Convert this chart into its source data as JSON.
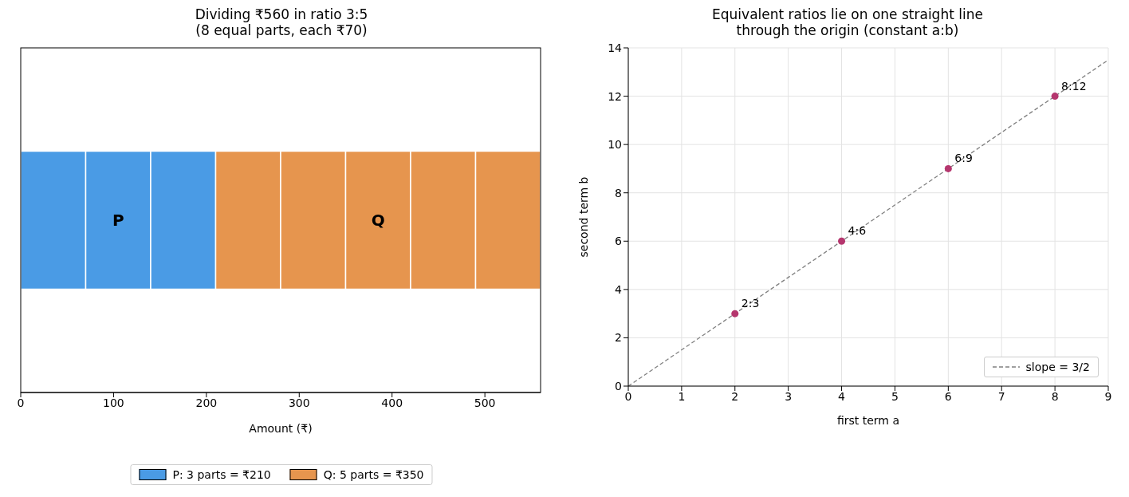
{
  "chart_data": [
    {
      "type": "bar",
      "title": "Dividing ₹560 in ratio 3:5\n(8 equal parts, each ₹70)",
      "xlabel": "Amount (₹)",
      "orientation": "horizontal",
      "stacked": true,
      "categories": [
        null
      ],
      "series": [
        {
          "name": "P: 3 parts = ₹210",
          "color": "#4a9be5",
          "values": [
            70
          ]
        },
        {
          "color": "#4a9be5",
          "values": [
            70
          ]
        },
        {
          "color": "#4a9be5",
          "values": [
            70
          ]
        },
        {
          "name": "Q: 5 parts = ₹350",
          "color": "#e6954e",
          "values": [
            70
          ]
        },
        {
          "color": "#e6954e",
          "values": [
            70
          ]
        },
        {
          "color": "#e6954e",
          "values": [
            70
          ]
        },
        {
          "color": "#e6954e",
          "values": [
            70
          ]
        },
        {
          "color": "#e6954e",
          "values": [
            70
          ]
        }
      ],
      "xlim": [
        0,
        560
      ],
      "xticks": [
        0,
        100,
        200,
        300,
        400,
        500
      ],
      "tick_labels": "x",
      "legend": "bottom",
      "grid": false,
      "annotations": [
        "P",
        "Q"
      ]
    },
    {
      "type": "scatter",
      "title": "Equivalent ratios lie on one straight line\nthrough the origin (constant a:b)",
      "xlabel": "first term  a",
      "ylabel": "second term  b",
      "series": [
        {
          "type": "line",
          "name": "slope = 3/2",
          "color": "#808080",
          "x": [
            0,
            9
          ],
          "values": [
            0,
            13.5
          ],
          "line_style": "dashed",
          "marker": "none"
        },
        {
          "type": "scatter",
          "color": "#b5366e",
          "x": [
            2,
            4,
            6,
            8
          ],
          "values": [
            3,
            6,
            9,
            12
          ],
          "marker": "circle"
        }
      ],
      "annotations": [
        {
          "text": "2:3",
          "x": 2,
          "y": 3
        },
        {
          "text": "4:6",
          "x": 4,
          "y": 6
        },
        {
          "text": "6:9",
          "x": 6,
          "y": 9
        },
        {
          "text": "8:12",
          "x": 8,
          "y": 12
        }
      ],
      "xlim": [
        0,
        9
      ],
      "xticks": [
        0,
        1,
        2,
        3,
        4,
        5,
        6,
        7,
        8,
        9
      ],
      "ylim": [
        0,
        14
      ],
      "yticks": [
        0,
        2,
        4,
        6,
        8,
        10,
        12,
        14
      ],
      "grid": true,
      "legend": "bottom right"
    }
  ]
}
